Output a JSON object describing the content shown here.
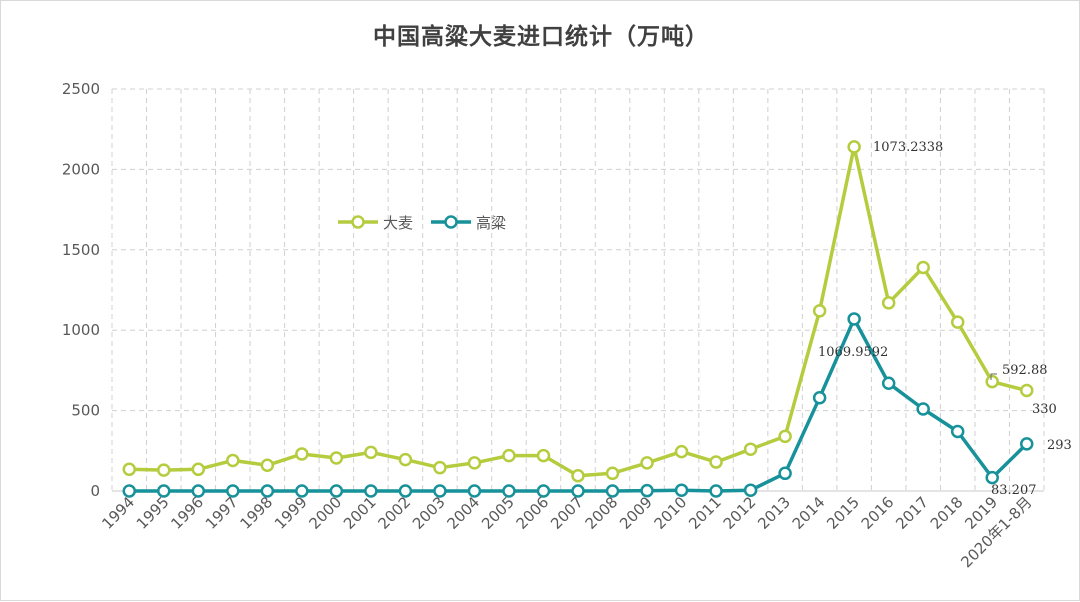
{
  "chart_data": {
    "type": "line",
    "title": "中国高粱大麦进口统计（万吨）",
    "xlabel": "",
    "ylabel": "",
    "ylim": [
      0,
      2500
    ],
    "yticks": [
      "0",
      "500",
      "1000",
      "1500",
      "2000",
      "2500"
    ],
    "grid": true,
    "legend": "upper-left inside plot",
    "categories": [
      "1994",
      "1995",
      "1996",
      "1997",
      "1998",
      "1999",
      "2000",
      "2001",
      "2002",
      "2003",
      "2004",
      "2005",
      "2006",
      "2007",
      "2008",
      "2009",
      "2010",
      "2011",
      "2012",
      "2013",
      "2014",
      "2015",
      "2016",
      "2017",
      "2018",
      "2019",
      "2020年1-8月"
    ],
    "series": [
      {
        "name": "大麦",
        "color": "#b5cc3f",
        "values": [
          135,
          130,
          135,
          190,
          160,
          230,
          205,
          240,
          195,
          145,
          175,
          220,
          220,
          95,
          110,
          175,
          245,
          180,
          260,
          340,
          1120,
          2140,
          1170,
          1390,
          1050,
          680,
          625
        ]
      },
      {
        "name": "高粱",
        "color": "#17919a",
        "values": [
          0,
          0,
          0,
          0,
          0,
          0,
          0,
          0,
          0,
          0,
          0,
          0,
          0,
          0,
          0,
          2,
          5,
          0,
          5,
          110,
          580,
          1070,
          670,
          510,
          370,
          83,
          293
        ]
      }
    ],
    "annotations": [
      "1073.2338",
      "1069.9592",
      "592.88",
      "330",
      "83.207",
      "293"
    ]
  }
}
